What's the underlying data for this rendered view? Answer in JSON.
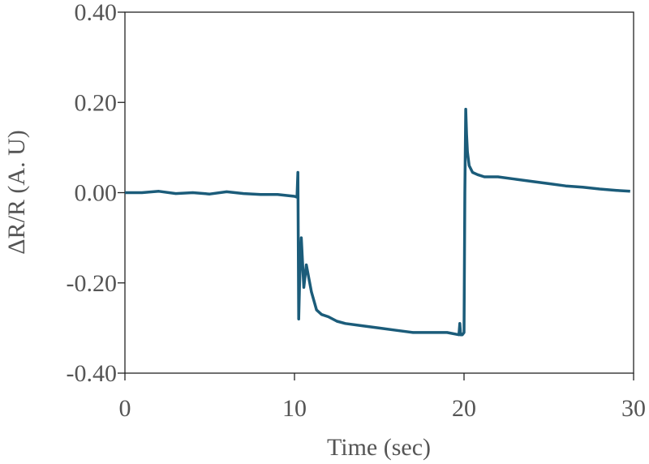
{
  "chart_data": {
    "type": "line",
    "title": "",
    "xlabel": "Time (sec)",
    "ylabel": "ΔR/R (A. U)",
    "xlim": [
      0,
      30
    ],
    "ylim": [
      -0.4,
      0.4
    ],
    "x_ticks": [
      0,
      10,
      20,
      30
    ],
    "x_tick_labels": [
      "0",
      "10",
      "20",
      "30"
    ],
    "y_ticks": [
      0.4,
      0.2,
      0.0,
      -0.2,
      -0.4
    ],
    "y_tick_labels": [
      "0.40",
      "0.20",
      "0.00",
      "-0.20",
      "-0.40"
    ],
    "grid": false,
    "line_color": "#1b5c7a",
    "series": [
      {
        "x": [
          0,
          1,
          2,
          3,
          4,
          5,
          6,
          7,
          8,
          9,
          10,
          10.15,
          10.2,
          10.25,
          10.3,
          10.4,
          10.55,
          10.7,
          11,
          11.3,
          11.6,
          12,
          12.5,
          13,
          14,
          15,
          16,
          17,
          18,
          19,
          19.7,
          19.75,
          19.8,
          19.9,
          20.0,
          20.05,
          20.1,
          20.15,
          20.2,
          20.3,
          20.5,
          20.8,
          21.2,
          22,
          23,
          24,
          25,
          26,
          27,
          28,
          29,
          29.8
        ],
        "y": [
          0.0,
          0.0,
          0.003,
          -0.002,
          0.0,
          -0.003,
          0.002,
          -0.002,
          -0.004,
          -0.004,
          -0.008,
          -0.01,
          0.045,
          -0.28,
          -0.2,
          -0.1,
          -0.21,
          -0.16,
          -0.22,
          -0.26,
          -0.27,
          -0.275,
          -0.285,
          -0.29,
          -0.295,
          -0.3,
          -0.305,
          -0.31,
          -0.31,
          -0.31,
          -0.315,
          -0.29,
          -0.315,
          -0.315,
          -0.31,
          0.0,
          0.185,
          0.13,
          0.09,
          0.06,
          0.045,
          0.04,
          0.035,
          0.035,
          0.03,
          0.025,
          0.02,
          0.015,
          0.012,
          0.008,
          0.005,
          0.003
        ]
      }
    ]
  }
}
